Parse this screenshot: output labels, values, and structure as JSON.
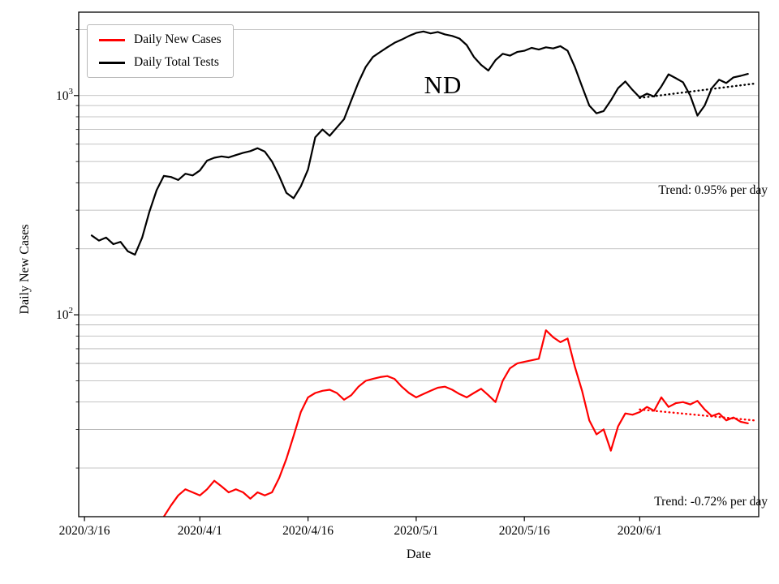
{
  "title": "ND",
  "axes": {
    "x_label": "Date",
    "y_label": "Daily New Cases"
  },
  "chart_data": {
    "type": "line",
    "title": "ND",
    "xlabel": "Date",
    "ylabel": "Daily New Cases",
    "x_unit": "days since 2020/3/16",
    "y_scale": "log",
    "xlim": [
      -0.8,
      93.5
    ],
    "ylim": [
      12,
      2400
    ],
    "grid": "horizontal",
    "legend_position": "upper left",
    "gridline_values": [
      20,
      30,
      40,
      50,
      60,
      70,
      80,
      90,
      100,
      200,
      300,
      400,
      500,
      600,
      700,
      800,
      900,
      1000,
      2000
    ],
    "x_ticks": [
      {
        "day": 0,
        "label": "2020/3/16"
      },
      {
        "day": 16,
        "label": "2020/4/1"
      },
      {
        "day": 31,
        "label": "2020/4/16"
      },
      {
        "day": 46,
        "label": "2020/5/1"
      },
      {
        "day": 61,
        "label": "2020/5/16"
      },
      {
        "day": 77,
        "label": "2020/6/1"
      }
    ],
    "y_ticks": [
      {
        "value": 100,
        "mantissa": "10",
        "exponent": "2"
      },
      {
        "value": 1000,
        "mantissa": "10",
        "exponent": "3"
      }
    ],
    "series": [
      {
        "name": "Daily New Cases",
        "color": "#ff0000",
        "x": [
          11,
          12,
          13,
          14,
          15,
          16,
          17,
          18,
          19,
          20,
          21,
          22,
          23,
          24,
          25,
          26,
          27,
          28,
          29,
          30,
          31,
          32,
          33,
          34,
          35,
          36,
          37,
          38,
          39,
          40,
          41,
          42,
          43,
          44,
          45,
          46,
          47,
          48,
          49,
          50,
          51,
          52,
          53,
          54,
          55,
          56,
          57,
          58,
          59,
          60,
          61,
          62,
          63,
          64,
          65,
          66,
          67,
          68,
          69,
          70,
          71,
          72,
          73,
          74,
          75,
          76,
          77,
          78,
          79,
          80,
          81,
          82,
          83,
          84,
          85,
          86,
          87,
          88,
          89,
          90,
          91,
          92
        ],
        "values": [
          12,
          13.5,
          15,
          16,
          15.5,
          15,
          16,
          17.5,
          16.5,
          15.5,
          16,
          15.5,
          14.5,
          15.5,
          15,
          15.5,
          18,
          22,
          28,
          36,
          42,
          44,
          45,
          45.5,
          44,
          41,
          43,
          47,
          50,
          51,
          52,
          52.5,
          51,
          47,
          44,
          42,
          43.5,
          45,
          46.5,
          47,
          45.5,
          43.5,
          42,
          44,
          46,
          43,
          40,
          50,
          57,
          60,
          61,
          62,
          63,
          85,
          79,
          75,
          78,
          58,
          45,
          33,
          28.5,
          30,
          24,
          31,
          35.5,
          35,
          36,
          38,
          36.5,
          42,
          38,
          39.5,
          40,
          39,
          40.5,
          37,
          34.5,
          35.5,
          33,
          34,
          32.5,
          32
        ]
      },
      {
        "name": "Daily Total Tests",
        "color": "#000000",
        "x": [
          1,
          2,
          3,
          4,
          5,
          6,
          7,
          8,
          9,
          10,
          11,
          12,
          13,
          14,
          15,
          16,
          17,
          18,
          19,
          20,
          21,
          22,
          23,
          24,
          25,
          26,
          27,
          28,
          29,
          30,
          31,
          32,
          33,
          34,
          35,
          36,
          37,
          38,
          39,
          40,
          41,
          42,
          43,
          44,
          45,
          46,
          47,
          48,
          49,
          50,
          51,
          52,
          53,
          54,
          55,
          56,
          57,
          58,
          59,
          60,
          61,
          62,
          63,
          64,
          65,
          66,
          67,
          68,
          69,
          70,
          71,
          72,
          73,
          74,
          75,
          76,
          77,
          78,
          79,
          80,
          81,
          82,
          83,
          84,
          85,
          86,
          87,
          88,
          89,
          90,
          91,
          92
        ],
        "values": [
          230,
          218,
          225,
          210,
          215,
          195,
          188,
          225,
          295,
          370,
          430,
          425,
          412,
          440,
          432,
          455,
          505,
          520,
          528,
          522,
          535,
          548,
          558,
          575,
          555,
          500,
          430,
          360,
          340,
          385,
          460,
          645,
          700,
          655,
          715,
          780,
          950,
          1150,
          1350,
          1500,
          1580,
          1660,
          1740,
          1800,
          1870,
          1930,
          1960,
          1920,
          1950,
          1900,
          1870,
          1820,
          1700,
          1500,
          1380,
          1300,
          1450,
          1550,
          1520,
          1580,
          1600,
          1650,
          1620,
          1660,
          1640,
          1680,
          1600,
          1350,
          1100,
          900,
          830,
          850,
          950,
          1080,
          1160,
          1060,
          980,
          1020,
          990,
          1100,
          1250,
          1200,
          1150,
          1000,
          810,
          900,
          1080,
          1180,
          1140,
          1210,
          1230,
          1255
        ]
      }
    ],
    "trend_lines": [
      {
        "series": "Daily Total Tests",
        "color": "#000000",
        "style": "dotted",
        "start_day": 77,
        "end_day": 93,
        "start_value": 975,
        "pct_per_day": 0.95,
        "label": "Trend: 0.95% per day"
      },
      {
        "series": "Daily New Cases",
        "color": "#ff0000",
        "style": "dotted",
        "start_day": 77,
        "end_day": 93,
        "start_value": 37,
        "pct_per_day": -0.72,
        "label": "Trend: -0.72% per day"
      }
    ]
  }
}
